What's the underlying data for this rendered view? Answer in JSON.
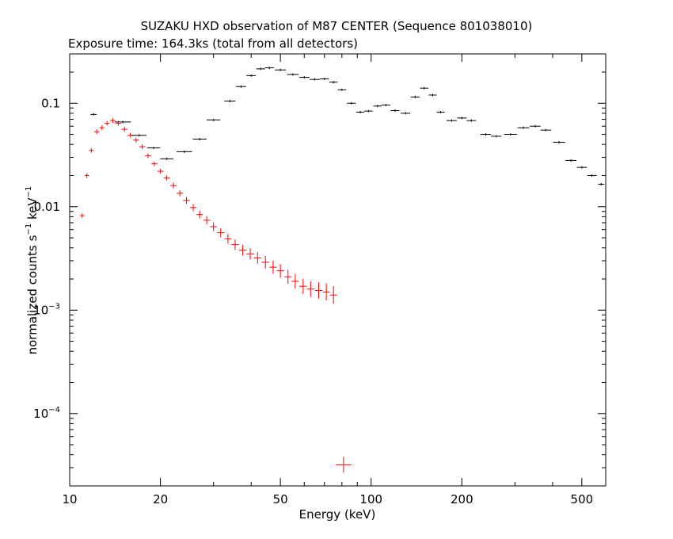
{
  "chart_data": {
    "type": "scatter",
    "title": "SUZAKU HXD observation of M87 CENTER (Sequence 801038010)",
    "subtitle": "Exposure time: 164.3ks (total from all detectors)",
    "xlabel": "Energy (keV)",
    "ylabel_main": "normalized counts s",
    "ylabel_exp1": "−1",
    "ylabel_mid": " keV",
    "ylabel_exp2": "−1",
    "xscale": "log",
    "yscale": "log",
    "xlim": [
      10,
      600
    ],
    "ylim": [
      2e-05,
      0.3
    ],
    "grid": false,
    "x_ticks": [
      {
        "value": 10,
        "label": "10"
      },
      {
        "value": 20,
        "label": "20"
      },
      {
        "value": 50,
        "label": "50"
      },
      {
        "value": 100,
        "label": "100"
      },
      {
        "value": 200,
        "label": "200"
      },
      {
        "value": 500,
        "label": "500"
      }
    ],
    "y_ticks": [
      {
        "value": 0.1,
        "label": "0.1",
        "exp": ""
      },
      {
        "value": 0.01,
        "label": "0.01",
        "exp": ""
      },
      {
        "value": 0.001,
        "label": "10",
        "exp": "−3"
      },
      {
        "value": 0.0001,
        "label": "10",
        "exp": "−4"
      }
    ],
    "series": [
      {
        "color": "#ff0000",
        "points": [
          [
            11.0,
            0.0082
          ],
          [
            11.4,
            0.02
          ],
          [
            11.8,
            0.035
          ],
          [
            12.3,
            0.053
          ],
          [
            12.8,
            0.058
          ],
          [
            13.3,
            0.064
          ],
          [
            13.9,
            0.068
          ],
          [
            14.5,
            0.064
          ],
          [
            15.2,
            0.056
          ],
          [
            15.9,
            0.049
          ],
          [
            16.6,
            0.044
          ],
          [
            17.4,
            0.038
          ],
          [
            18.2,
            0.031
          ],
          [
            19.1,
            0.026
          ],
          [
            20.0,
            0.022
          ],
          [
            21.0,
            0.019
          ],
          [
            22.1,
            0.016
          ],
          [
            23.2,
            0.0135
          ],
          [
            24.4,
            0.0115
          ],
          [
            25.7,
            0.0098
          ],
          [
            27.0,
            0.0084
          ],
          [
            28.5,
            0.0074
          ],
          [
            30.0,
            0.0064
          ],
          [
            31.7,
            0.0056
          ],
          [
            33.5,
            0.0049
          ],
          [
            35.4,
            0.0043
          ],
          [
            37.5,
            0.0038
          ],
          [
            39.7,
            0.0035
          ],
          [
            42.0,
            0.0032
          ],
          [
            44.6,
            0.0029
          ],
          [
            47.3,
            0.0026
          ],
          [
            50.0,
            0.0024
          ],
          [
            53.0,
            0.0021
          ],
          [
            56.0,
            0.0019
          ],
          [
            59.5,
            0.0017
          ],
          [
            63.0,
            0.0016
          ],
          [
            67.0,
            0.00155
          ],
          [
            71.0,
            0.0015
          ],
          [
            75.0,
            0.0014
          ],
          [
            81.0,
            3.2e-05
          ]
        ]
      },
      {
        "color": "#000000",
        "points": [
          [
            12.0,
            0.078
          ],
          [
            15.0,
            0.066
          ],
          [
            17.0,
            0.049
          ],
          [
            19.0,
            0.037
          ],
          [
            21.0,
            0.029
          ],
          [
            24.0,
            0.034
          ],
          [
            27.0,
            0.045
          ],
          [
            30.0,
            0.069
          ],
          [
            34.0,
            0.105
          ],
          [
            37.0,
            0.145
          ],
          [
            40.0,
            0.185
          ],
          [
            43.0,
            0.215
          ],
          [
            46.0,
            0.22
          ],
          [
            50.0,
            0.21
          ],
          [
            55.0,
            0.19
          ],
          [
            60.0,
            0.178
          ],
          [
            65.0,
            0.17
          ],
          [
            70.0,
            0.172
          ],
          [
            75.0,
            0.16
          ],
          [
            80.0,
            0.135
          ],
          [
            86.0,
            0.1
          ],
          [
            92.0,
            0.082
          ],
          [
            98.0,
            0.084
          ],
          [
            105.0,
            0.094
          ],
          [
            112.0,
            0.096
          ],
          [
            120.0,
            0.085
          ],
          [
            130.0,
            0.08
          ],
          [
            140.0,
            0.115
          ],
          [
            150.0,
            0.14
          ],
          [
            160.0,
            0.12
          ],
          [
            170.0,
            0.082
          ],
          [
            185.0,
            0.068
          ],
          [
            200.0,
            0.072
          ],
          [
            215.0,
            0.068
          ],
          [
            240.0,
            0.05
          ],
          [
            260.0,
            0.048
          ],
          [
            290.0,
            0.05
          ],
          [
            320.0,
            0.058
          ],
          [
            350.0,
            0.06
          ],
          [
            380.0,
            0.055
          ],
          [
            420.0,
            0.042
          ],
          [
            460.0,
            0.028
          ],
          [
            500.0,
            0.024
          ],
          [
            540.0,
            0.02
          ],
          [
            580.0,
            0.0165
          ]
        ]
      }
    ]
  }
}
